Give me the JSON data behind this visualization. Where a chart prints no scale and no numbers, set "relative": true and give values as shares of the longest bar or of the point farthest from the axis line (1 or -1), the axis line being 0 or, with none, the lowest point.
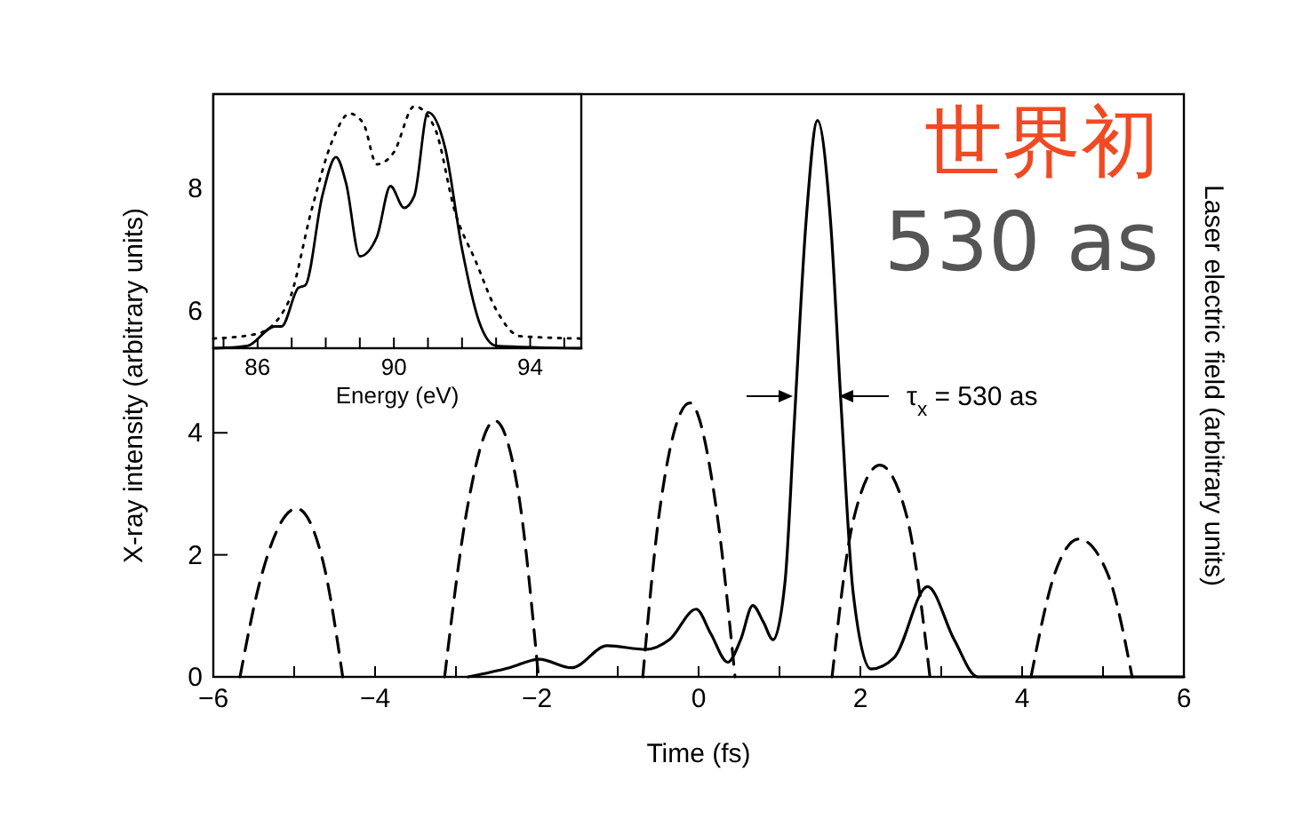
{
  "chart_data": [
    {
      "type": "line",
      "xlabel": "Time (fs)",
      "ylabel": "X-ray intensity (arbitrary units)",
      "y2label": "Laser electric field (arbitrary units)",
      "xlim": [
        -6,
        6
      ],
      "xticks": [
        -6,
        {
          "value": -5,
          "label": null
        },
        -4,
        {
          "value": -3,
          "label": null
        },
        -2,
        {
          "value": -1,
          "label": null
        },
        0,
        {
          "value": 1,
          "label": null
        },
        2,
        {
          "value": 3,
          "label": null
        },
        4,
        {
          "value": 5,
          "label": null
        },
        6
      ],
      "ylim": [
        0,
        9.55
      ],
      "yticks": [
        0,
        2,
        4,
        6,
        8
      ],
      "grid": false,
      "series": [
        {
          "color": "#000000",
          "line_style": "solid",
          "x": [
            -2.85,
            -2.34,
            -1.97,
            -1.57,
            -1.13,
            -0.65,
            -0.36,
            -0.03,
            0.15,
            0.36,
            0.52,
            0.67,
            0.8,
            0.92,
            1.07,
            1.18,
            1.33,
            1.47,
            1.63,
            1.76,
            1.91,
            2.13,
            2.42,
            2.83,
            3.16,
            3.45,
            6.0
          ],
          "values": [
            0,
            0.15,
            0.29,
            0.15,
            0.51,
            0.45,
            0.61,
            1.11,
            0.71,
            0.24,
            0.61,
            1.17,
            0.9,
            0.61,
            1.58,
            4.1,
            7.49,
            9.12,
            7.49,
            4.49,
            1.39,
            0.13,
            0.32,
            1.48,
            0.61,
            0,
            0
          ]
        },
        {
          "color": "#000000",
          "line_style": "dashed",
          "x": [
            -5.67,
            -5.42,
            -4.97,
            -4.64,
            -4.4,
            -4.0,
            -3.14,
            -2.85,
            -2.52,
            -2.23,
            -1.98,
            -1.5,
            -0.69,
            -0.47,
            -0.11,
            0.23,
            0.45,
            1.0,
            1.65,
            1.91,
            2.24,
            2.57,
            2.86,
            3.5,
            4.11,
            4.4,
            4.7,
            5.06,
            5.36
          ],
          "values": [
            0,
            1.58,
            2.76,
            1.87,
            0,
            null,
            0,
            2.84,
            4.2,
            3.03,
            0,
            null,
            0,
            2.84,
            4.49,
            2.65,
            0,
            null,
            0,
            2.55,
            3.47,
            2.65,
            0,
            null,
            0,
            1.68,
            2.26,
            1.68,
            0
          ]
        }
      ],
      "annotations": [
        "世界初",
        "530 as",
        "τ$_{x}$ = 530 as"
      ]
    },
    {
      "type": "line",
      "relative": true,
      "xlabel": "Energy (eV)",
      "xlim": [
        84.7,
        95.5
      ],
      "xticks": [
        {
          "value": 85,
          "label": null
        },
        86,
        {
          "value": 87,
          "label": null
        },
        {
          "value": 88,
          "label": null
        },
        {
          "value": 89,
          "label": null
        },
        90,
        {
          "value": 91,
          "label": null
        },
        {
          "value": 92,
          "label": null
        },
        {
          "value": 93,
          "label": null
        },
        94,
        {
          "value": 95,
          "label": null
        }
      ],
      "tick_labels": "x",
      "grid": false,
      "series": [
        {
          "color": "#000000",
          "line_style": "solid",
          "x": [
            84.7,
            85.7,
            86.5,
            86.7,
            87.2,
            87.4,
            87.9,
            88.3,
            88.6,
            89.0,
            89.5,
            89.9,
            90.3,
            90.6,
            91.0,
            91.5,
            92.0,
            92.5,
            93.0,
            95.5
          ],
          "values": [
            0,
            0.01,
            0.09,
            0.09,
            0.25,
            0.26,
            0.63,
            0.79,
            0.68,
            0.38,
            0.46,
            0.67,
            0.58,
            0.63,
            0.975,
            0.83,
            0.41,
            0.11,
            0.01,
            0
          ]
        },
        {
          "color": "#000000",
          "line_style": "dotted",
          "x": [
            84.7,
            86.0,
            86.9,
            87.6,
            88.2,
            88.7,
            89.1,
            89.5,
            90.0,
            90.6,
            91.2,
            91.8,
            92.4,
            93.0,
            93.7,
            95.5
          ],
          "values": [
            0.04,
            0.06,
            0.19,
            0.58,
            0.86,
            0.97,
            0.93,
            0.76,
            0.81,
            1.0,
            0.91,
            0.56,
            0.36,
            0.16,
            0.05,
            0.04
          ]
        }
      ]
    }
  ]
}
